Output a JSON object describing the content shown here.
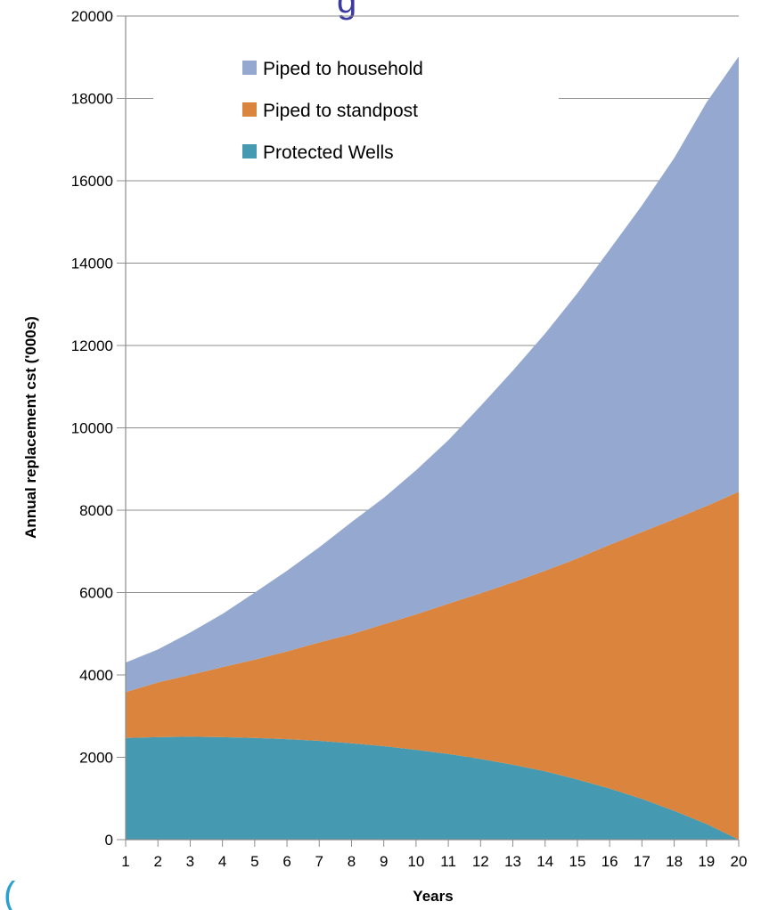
{
  "page": {
    "title_fragment": "g",
    "corner_mark": "("
  },
  "chart_data": {
    "type": "area",
    "stacked": true,
    "x": [
      1,
      2,
      3,
      4,
      5,
      6,
      7,
      8,
      9,
      10,
      11,
      12,
      13,
      14,
      15,
      16,
      17,
      18,
      19,
      20
    ],
    "xlabel": "Years",
    "ylabel": "Annual replacement cst ('000s)",
    "ylim": [
      0,
      20000
    ],
    "yticks": [
      0,
      2000,
      4000,
      6000,
      8000,
      10000,
      12000,
      14000,
      16000,
      18000,
      20000
    ],
    "grid": true,
    "legend_position": "top-left",
    "series": [
      {
        "name": "Protected Wells",
        "color": "#4599b0",
        "values": [
          2470,
          2490,
          2500,
          2490,
          2470,
          2440,
          2400,
          2340,
          2270,
          2180,
          2080,
          1960,
          1820,
          1660,
          1460,
          1240,
          990,
          700,
          380,
          0
        ]
      },
      {
        "name": "Piped to standpost",
        "color": "#db843d",
        "values": [
          1110,
          1330,
          1500,
          1700,
          1900,
          2130,
          2390,
          2650,
          2960,
          3290,
          3650,
          4020,
          4430,
          4870,
          5370,
          5920,
          6480,
          7080,
          7720,
          8450
        ]
      },
      {
        "name": "Piped to household",
        "color": "#95a9d0",
        "values": [
          720,
          800,
          1030,
          1290,
          1630,
          1960,
          2310,
          2720,
          3070,
          3500,
          3970,
          4550,
          5140,
          5760,
          6440,
          7170,
          7930,
          8770,
          9800,
          10570
        ]
      }
    ],
    "legend": [
      {
        "name": "Piped to household",
        "color": "#95a9d0"
      },
      {
        "name": "Piped to standpost",
        "color": "#db843d"
      },
      {
        "name": "Protected Wells",
        "color": "#4599b0"
      }
    ]
  }
}
